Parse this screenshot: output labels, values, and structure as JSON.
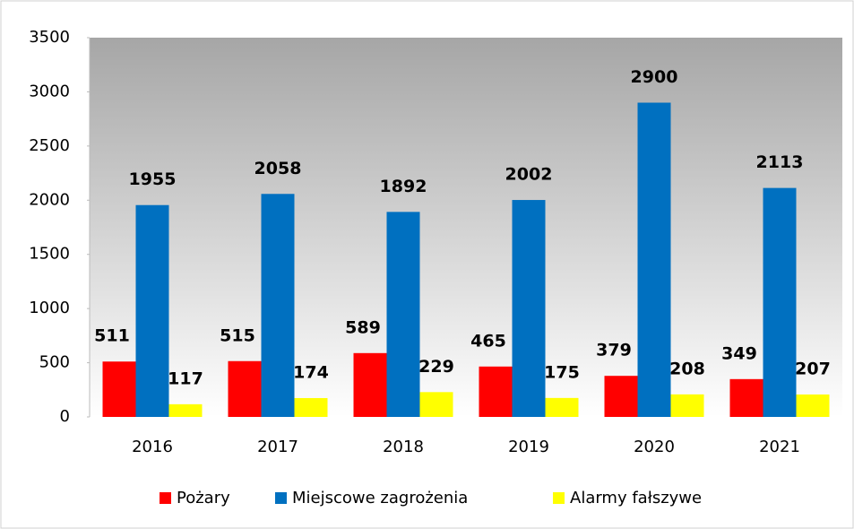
{
  "chart_data": {
    "type": "bar",
    "categories": [
      "2016",
      "2017",
      "2018",
      "2019",
      "2020",
      "2021"
    ],
    "series": [
      {
        "name": "Pożary",
        "color": "#ff0000",
        "values": [
          511,
          515,
          589,
          465,
          379,
          349
        ]
      },
      {
        "name": "Miejscowe zagrożenia",
        "color": "#0070c0",
        "values": [
          1955,
          2058,
          1892,
          2002,
          2900,
          2113
        ]
      },
      {
        "name": "Alarmy fałszywe",
        "color": "#ffff00",
        "values": [
          117,
          174,
          229,
          175,
          208,
          207
        ]
      }
    ],
    "ylim": [
      0,
      3500
    ],
    "yticks": [
      0,
      500,
      1000,
      1500,
      2000,
      2500,
      3000,
      3500
    ],
    "legend": "bottom"
  }
}
